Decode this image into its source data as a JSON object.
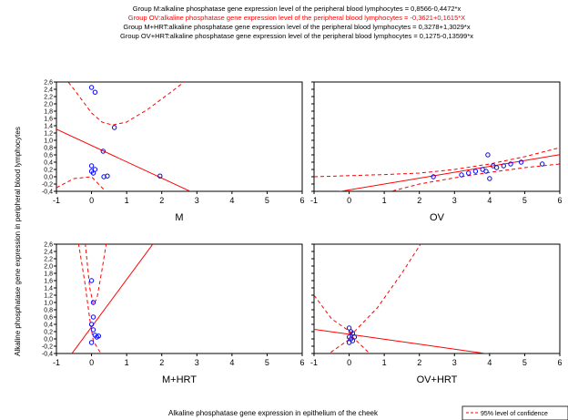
{
  "header_lines": [
    {
      "text": "Group M:alkaline phosphatase gene expression level  of the peripheral blood lymphocytes = 0,8566-0,4472*x",
      "color": "#000000"
    },
    {
      "text": "Group OV:alkaline phosphatase gene expression level  of the peripheral blood lymphocytes = -0,3621+0,1615*X",
      "color": "#ff0000"
    },
    {
      "text": "Group M+HRT:alkaline phosphatase gene expression level  of the peripheral blood lymphocytes = 0,3278+1,3029*x",
      "color": "#000000"
    },
    {
      "text": "Group OV+HRT:alkaline phosphatase gene expression level  of the peripheral blood lymphocytes = 0,1275-0,13599*x",
      "color": "#000000"
    }
  ],
  "y_axis_title": "Alkaline phosphatase gene expression in peripheral blood lymphocytes",
  "x_axis_title": "Alkaline phosphatase gene expression in epithelium of the cheek",
  "legend_label": "95% level of confidence",
  "colors": {
    "line": "#ff0000",
    "point": "#0000ff",
    "frame": "#000000",
    "background": "#ffffff"
  },
  "chart_data": {
    "type": "scatter",
    "layout": "2x2 panels",
    "legend_placement": "bottom-right",
    "grid": false,
    "xlim": [
      -1,
      6
    ],
    "ylim": [
      -0.4,
      2.6
    ],
    "x_ticks": [
      "-1",
      "0",
      "1",
      "2",
      "3",
      "4",
      "5",
      "6"
    ],
    "y_ticks": [
      "-0,4",
      "-0,2",
      "0,0",
      "0,2",
      "0,4",
      "0,6",
      "0,8",
      "1,0",
      "1,2",
      "1,4",
      "1,6",
      "1,8",
      "2,0",
      "2,2",
      "2,4",
      "2,6"
    ],
    "panels": [
      {
        "label": "M",
        "points": [
          [
            0.0,
            2.45
          ],
          [
            0.1,
            2.32
          ],
          [
            0.33,
            0.7
          ],
          [
            0.65,
            1.35
          ],
          [
            0.0,
            0.3
          ],
          [
            0.0,
            0.15
          ],
          [
            0.05,
            0.1
          ],
          [
            0.1,
            0.2
          ],
          [
            0.35,
            0.0
          ],
          [
            0.45,
            0.02
          ],
          [
            1.95,
            0.02
          ]
        ],
        "fit": {
          "intercept": 0.8566,
          "slope": -0.4472
        },
        "ci_upper": [
          [
            -1,
            3.0
          ],
          [
            -0.5,
            2.4
          ],
          [
            0.0,
            1.75
          ],
          [
            0.3,
            1.5
          ],
          [
            0.6,
            1.42
          ],
          [
            1.0,
            1.5
          ],
          [
            1.6,
            1.85
          ],
          [
            2.3,
            2.35
          ],
          [
            2.9,
            2.8
          ]
        ],
        "ci_lower": [
          [
            -1,
            -0.3
          ],
          [
            -0.5,
            -0.05
          ],
          [
            0.0,
            0.0
          ],
          [
            0.3,
            -0.3
          ],
          [
            0.6,
            -0.6
          ],
          [
            1.0,
            -1.2
          ]
        ]
      },
      {
        "label": "OV",
        "points": [
          [
            2.4,
            0.0
          ],
          [
            3.2,
            0.05
          ],
          [
            3.4,
            0.1
          ],
          [
            3.6,
            0.15
          ],
          [
            3.8,
            0.2
          ],
          [
            3.9,
            0.15
          ],
          [
            3.95,
            0.6
          ],
          [
            4.0,
            -0.05
          ],
          [
            4.1,
            0.3
          ],
          [
            4.2,
            0.25
          ],
          [
            4.4,
            0.3
          ],
          [
            4.6,
            0.35
          ],
          [
            4.9,
            0.4
          ],
          [
            5.5,
            0.35
          ]
        ],
        "fit": {
          "intercept": -0.3621,
          "slope": 0.1615
        },
        "ci_upper": [
          [
            -1,
            0.0
          ],
          [
            0,
            0.03
          ],
          [
            1,
            0.06
          ],
          [
            2,
            0.1
          ],
          [
            3,
            0.2
          ],
          [
            4,
            0.35
          ],
          [
            5,
            0.55
          ],
          [
            6,
            0.8
          ]
        ],
        "ci_lower": [
          [
            -1,
            -1.1
          ],
          [
            0,
            -0.7
          ],
          [
            1,
            -0.45
          ],
          [
            2,
            -0.2
          ],
          [
            3,
            -0.03
          ],
          [
            4,
            0.12
          ],
          [
            5,
            0.25
          ],
          [
            6,
            0.35
          ]
        ]
      },
      {
        "label": "M+HRT",
        "points": [
          [
            0.0,
            1.6
          ],
          [
            0.05,
            1.0
          ],
          [
            0.05,
            0.6
          ],
          [
            0.0,
            0.4
          ],
          [
            0.05,
            0.25
          ],
          [
            0.1,
            0.1
          ],
          [
            0.15,
            0.05
          ],
          [
            0.2,
            0.08
          ],
          [
            0.0,
            -0.1
          ]
        ],
        "fit": {
          "intercept": 0.3278,
          "slope": 1.3029
        },
        "ci_upper": [
          [
            -0.2,
            2.8
          ],
          [
            -0.05,
            1.4
          ],
          [
            0.05,
            0.95
          ],
          [
            0.15,
            1.1
          ],
          [
            0.3,
            1.9
          ],
          [
            0.45,
            2.8
          ]
        ],
        "ci_lower": [
          [
            -0.4,
            2.8
          ],
          [
            -0.2,
            1.6
          ],
          [
            -0.05,
            0.55
          ],
          [
            0.05,
            -0.05
          ],
          [
            0.2,
            -0.3
          ],
          [
            0.35,
            -0.5
          ]
        ]
      },
      {
        "label": "OV+HRT",
        "points": [
          [
            0.0,
            0.3
          ],
          [
            0.05,
            0.2
          ],
          [
            0.1,
            0.15
          ],
          [
            0.0,
            0.05
          ],
          [
            0.05,
            0.0
          ],
          [
            0.1,
            -0.05
          ],
          [
            0.15,
            0.05
          ],
          [
            0.0,
            -0.1
          ]
        ],
        "fit": {
          "intercept": 0.1275,
          "slope": -0.13599
        },
        "ci_upper": [
          [
            -1,
            1.2
          ],
          [
            -0.5,
            0.55
          ],
          [
            0.1,
            0.15
          ],
          [
            0.8,
            0.85
          ],
          [
            1.5,
            1.8
          ],
          [
            2.1,
            2.7
          ]
        ],
        "ci_lower": [
          [
            -1,
            -0.9
          ],
          [
            -0.5,
            -0.35
          ],
          [
            0.1,
            0.05
          ],
          [
            0.8,
            -0.6
          ],
          [
            1.5,
            -1.4
          ]
        ]
      }
    ]
  }
}
